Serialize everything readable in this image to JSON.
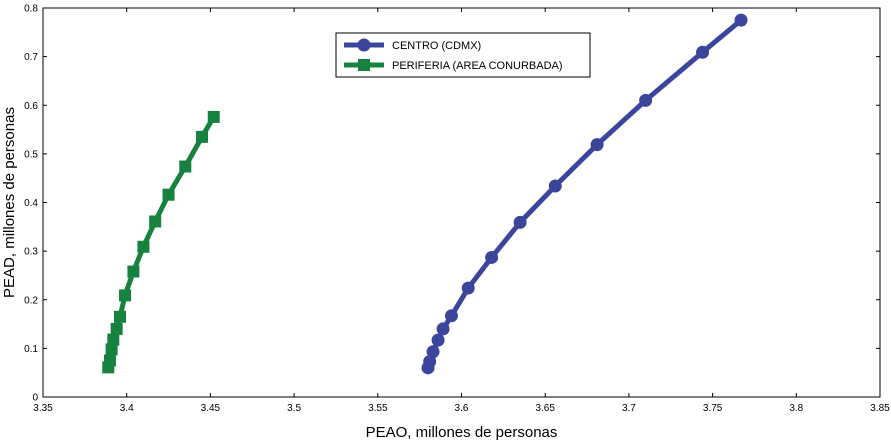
{
  "chart_data": {
    "type": "line",
    "xlabel": "PEAO, millones de personas",
    "ylabel": "PEAD, millones de personas",
    "xlim": [
      3.35,
      3.85
    ],
    "ylim": [
      0,
      0.8
    ],
    "xticks": [
      "3.35",
      "3.4",
      "3.45",
      "3.5",
      "3.55",
      "3.6",
      "3.65",
      "3.7",
      "3.75",
      "3.8",
      "3.85"
    ],
    "yticks": [
      "0",
      "0.1",
      "0.2",
      "0.3",
      "0.4",
      "0.5",
      "0.6",
      "0.7",
      "0.8"
    ],
    "grid": false,
    "legend_position": "top-center",
    "series": [
      {
        "name": "CENTRO (CDMX)",
        "color": "#3a459b",
        "marker": "circle",
        "points": [
          [
            3.58,
            0.06
          ],
          [
            3.581,
            0.073
          ],
          [
            3.583,
            0.093
          ],
          [
            3.586,
            0.117
          ],
          [
            3.589,
            0.14
          ],
          [
            3.594,
            0.167
          ],
          [
            3.604,
            0.224
          ],
          [
            3.618,
            0.287
          ],
          [
            3.635,
            0.359
          ],
          [
            3.656,
            0.434
          ],
          [
            3.681,
            0.519
          ],
          [
            3.71,
            0.61
          ],
          [
            3.744,
            0.709
          ],
          [
            3.767,
            0.775
          ]
        ]
      },
      {
        "name": "PERIFERIA (AREA CONURBADA)",
        "color": "#17823f",
        "marker": "square",
        "points": [
          [
            3.389,
            0.061
          ],
          [
            3.39,
            0.075
          ],
          [
            3.391,
            0.098
          ],
          [
            3.392,
            0.118
          ],
          [
            3.394,
            0.14
          ],
          [
            3.396,
            0.165
          ],
          [
            3.399,
            0.209
          ],
          [
            3.404,
            0.258
          ],
          [
            3.41,
            0.309
          ],
          [
            3.417,
            0.361
          ],
          [
            3.425,
            0.416
          ],
          [
            3.435,
            0.474
          ],
          [
            3.445,
            0.535
          ],
          [
            3.452,
            0.576
          ]
        ]
      }
    ]
  }
}
